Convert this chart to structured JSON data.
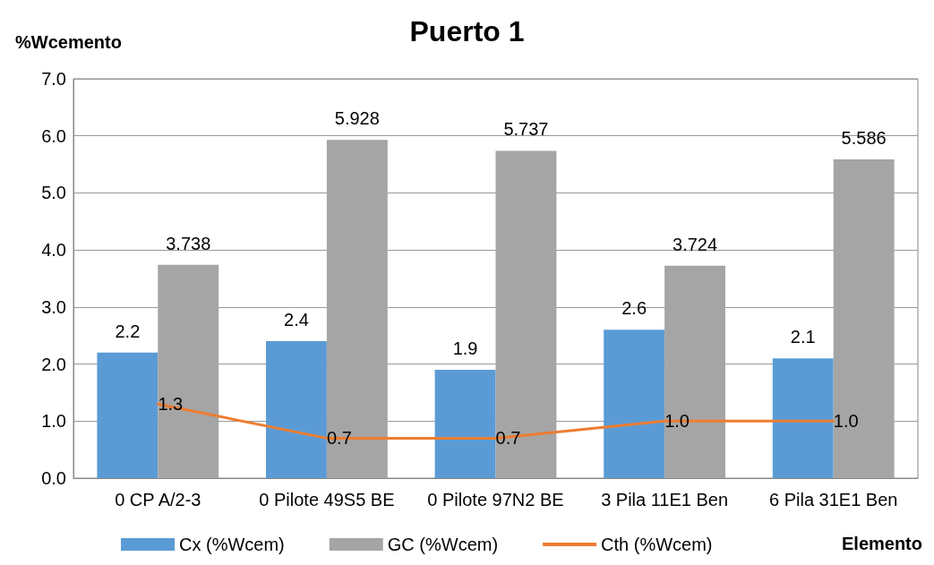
{
  "chart_data": {
    "type": "bar",
    "title": "Puerto 1",
    "ylabel": "%Wcemento",
    "xlabel": "Elemento",
    "categories": [
      "0 CP A/2-3",
      "0 Pilote 49S5 BE",
      "0 Pilote 97N2 BE",
      "3 Pila 11E1 Ben",
      "6 Pila 31E1 Ben"
    ],
    "series": [
      {
        "name": "Cx (%Wcem)",
        "color": "#5b9bd5",
        "values": [
          2.2,
          2.4,
          1.9,
          2.6,
          2.1
        ]
      },
      {
        "name": "GC (%Wcem)",
        "color": "#a5a5a5",
        "values": [
          3.738,
          5.928,
          5.737,
          3.724,
          5.586
        ]
      },
      {
        "name": "Cth (%Wcem)",
        "type": "line",
        "color": "#ed7d31",
        "marker": "none",
        "values": [
          1.3,
          0.7,
          0.7,
          1.0,
          1.0
        ],
        "value_labels": [
          "1.3",
          "0.7",
          "0.7",
          "1.0",
          "1.0"
        ]
      }
    ],
    "ylim": [
      0,
      7
    ],
    "yticks": [
      {
        "value": 0,
        "label": "0.0"
      },
      {
        "value": 1,
        "label": "1.0"
      },
      {
        "value": 2,
        "label": "2.0"
      },
      {
        "value": 3,
        "label": "3.0"
      },
      {
        "value": 4,
        "label": "4.0"
      },
      {
        "value": 5,
        "label": "5.0"
      },
      {
        "value": 6,
        "label": "6.0"
      },
      {
        "value": 7,
        "label": "7.0"
      }
    ],
    "grid": "y",
    "legend": "bottom",
    "data_labels": true
  }
}
